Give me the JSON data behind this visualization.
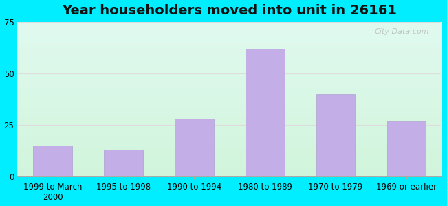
{
  "title": "Year householders moved into unit in 26161",
  "categories": [
    "1999 to March\n2000",
    "1995 to 1998",
    "1990 to 1994",
    "1980 to 1989",
    "1970 to 1979",
    "1969 or earlier"
  ],
  "values": [
    15,
    13,
    28,
    62,
    40,
    27
  ],
  "bar_color": "#c4aee8",
  "bar_edge_color": "#b09fd0",
  "ylim": [
    0,
    75
  ],
  "yticks": [
    0,
    25,
    50,
    75
  ],
  "background_outer": "#00eeff",
  "background_inner_topleft": "#d0f5ef",
  "background_inner_topright": "#e8f8f5",
  "background_inner_bottom": "#d8f5d8",
  "grid_color": "#dddddd",
  "title_fontsize": 14,
  "tick_fontsize": 8.5,
  "watermark": "City-Data.com"
}
